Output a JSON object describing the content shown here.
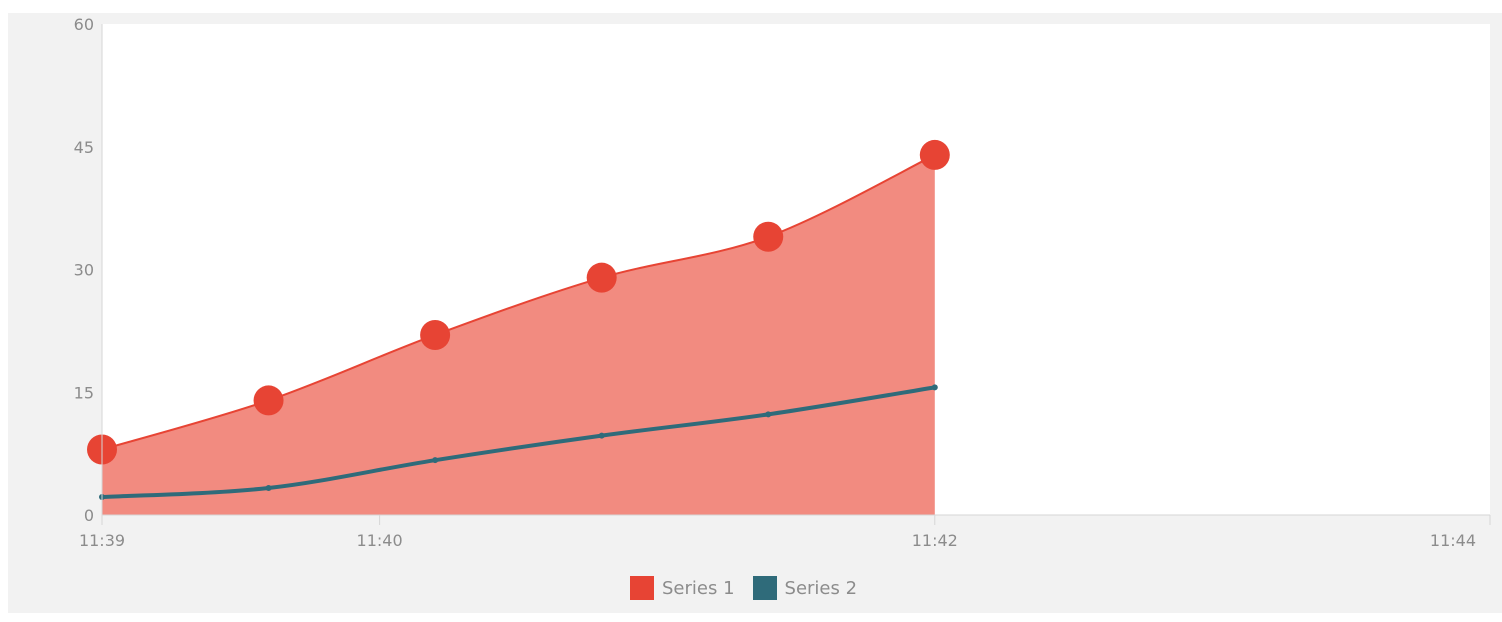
{
  "chart_data": {
    "type": "area",
    "x": [
      "11:39",
      "11:39:36",
      "11:40:12",
      "11:40:48",
      "11:41:24",
      "11:42:00"
    ],
    "xticks": [
      "11:39",
      "11:40",
      "11:42",
      "11:44"
    ],
    "ylim": [
      0,
      60
    ],
    "yticks": [
      0,
      15,
      30,
      45,
      60
    ],
    "grid": false,
    "legend_position": "bottom-center",
    "series": [
      {
        "name": "Series 1",
        "values": [
          8,
          14,
          22,
          29,
          34,
          44
        ],
        "color": "#e74434",
        "fill": "#f28b80",
        "marker": "large-circle"
      },
      {
        "name": "Series 2",
        "values": [
          2.2,
          3.3,
          6.7,
          9.7,
          12.3,
          15.6
        ],
        "color": "#2f6b7a",
        "marker": "small-dot"
      }
    ]
  }
}
